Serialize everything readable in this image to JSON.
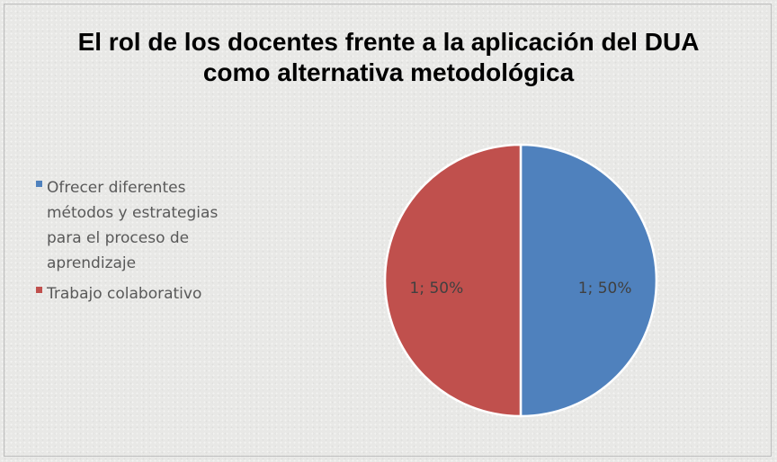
{
  "chart_data": {
    "type": "pie",
    "title": "El rol de los docentes frente a la aplicación del DUA como alternativa metodológica",
    "categories": [
      "Ofrecer diferentes métodos y estrategias para el proceso de aprendizaje",
      "Trabajo colaborativo"
    ],
    "values": [
      1,
      1
    ],
    "value_labels": [
      "1; 50%",
      "1; 50%"
    ],
    "colors": [
      "#4f81bd",
      "#c0504d"
    ],
    "legend": "left"
  }
}
